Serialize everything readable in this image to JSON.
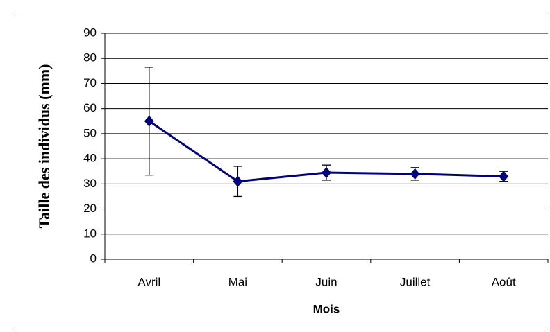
{
  "chart_data": {
    "type": "line",
    "categories": [
      "Avril",
      "Mai",
      "Juin",
      "Juillet",
      "Août"
    ],
    "values": [
      55,
      31,
      34.5,
      34,
      33
    ],
    "errors": [
      21.5,
      6,
      3,
      2.5,
      2
    ],
    "color": "#000080",
    "x_label": "Mois",
    "y_label": "Taille des individus (mm)",
    "ylim": [
      0,
      90
    ],
    "yticks": [
      0,
      10,
      20,
      30,
      40,
      50,
      60,
      70,
      80,
      90
    ],
    "grid": true
  }
}
